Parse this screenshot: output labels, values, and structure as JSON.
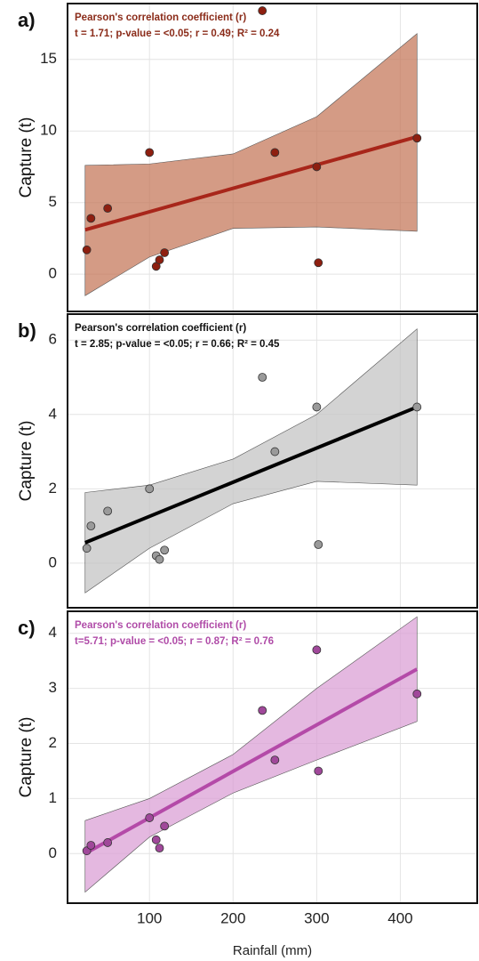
{
  "chart_data": [
    {
      "type": "scatter",
      "panel_label": "a)",
      "annotation": [
        "Pearson's correlation coefficient (r)",
        "t = 1.71; p-value = <0.05; r = 0.49; R² = 0.24"
      ],
      "ylabel": "Capture (t)",
      "x": [
        25,
        30,
        50,
        100,
        108,
        112,
        118,
        235,
        250,
        300,
        302,
        420
      ],
      "values": [
        1.7,
        3.9,
        4.6,
        8.5,
        0.55,
        1.0,
        1.5,
        18.4,
        8.5,
        7.5,
        0.8,
        9.5
      ],
      "color": "#8e1f10",
      "line_color": "#a8261a",
      "band_color": "#c67a5c",
      "text_color": "#8b2c1a",
      "fit": {
        "x": [
          23,
          420
        ],
        "y": [
          3.1,
          9.6
        ]
      },
      "band": {
        "x": [
          23,
          100,
          200,
          300,
          420
        ],
        "upper": [
          7.6,
          7.7,
          8.4,
          11,
          16.8
        ],
        "lower": [
          -1.5,
          1.2,
          3.2,
          3.3,
          3.0
        ]
      },
      "xlim": [
        2,
        492
      ],
      "xticks": [
        100,
        200,
        300,
        400
      ],
      "ylim": [
        -2.6,
        18.9
      ],
      "yticks": [
        0,
        5,
        10,
        15
      ],
      "grid": true
    },
    {
      "type": "scatter",
      "panel_label": "b)",
      "annotation": [
        "Pearson's correlation coefficient (r)",
        "t = 2.85; p-value = <0.05; r = 0.66; R² = 0.45"
      ],
      "ylabel": "Capture (t)",
      "x": [
        25,
        30,
        50,
        100,
        108,
        112,
        118,
        235,
        250,
        300,
        302,
        420
      ],
      "values": [
        0.4,
        1.0,
        1.4,
        2.0,
        0.2,
        0.1,
        0.35,
        5.0,
        3.0,
        4.2,
        0.5,
        4.2
      ],
      "color": "#9a9a9a",
      "line_color": "#000000",
      "band_color": "#c4c4c4",
      "text_color": "#111111",
      "fit": {
        "x": [
          23,
          420
        ],
        "y": [
          0.55,
          4.2
        ]
      },
      "band": {
        "x": [
          23,
          100,
          200,
          300,
          420
        ],
        "upper": [
          1.9,
          2.1,
          2.8,
          4.0,
          6.3
        ],
        "lower": [
          -0.8,
          0.4,
          1.6,
          2.2,
          2.1
        ]
      },
      "xlim": [
        2,
        492
      ],
      "xticks": [
        100,
        200,
        300,
        400
      ],
      "ylim": [
        -1.2,
        6.7
      ],
      "yticks": [
        0,
        2,
        4,
        6
      ],
      "grid": true
    },
    {
      "type": "scatter",
      "panel_label": "c)",
      "annotation": [
        "Pearson's correlation coefficient (r)",
        "t=5.71; p-value = <0.05; r = 0.87; R² = 0.76"
      ],
      "ylabel": "Capture (t)",
      "xlabel": "Rainfall (mm)",
      "x": [
        25,
        30,
        50,
        100,
        108,
        112,
        118,
        235,
        250,
        300,
        302,
        420
      ],
      "values": [
        0.05,
        0.15,
        0.2,
        0.65,
        0.25,
        0.1,
        0.5,
        2.6,
        1.7,
        3.7,
        1.5,
        2.9
      ],
      "color": "#a0489a",
      "line_color": "#b44aa8",
      "band_color": "#dba0d6",
      "text_color": "#b04ca8",
      "fit": {
        "x": [
          23,
          420
        ],
        "y": [
          0.0,
          3.35
        ]
      },
      "band": {
        "x": [
          23,
          100,
          200,
          300,
          420
        ],
        "upper": [
          0.6,
          1.0,
          1.8,
          3.0,
          4.3
        ],
        "lower": [
          -0.7,
          0.3,
          1.1,
          1.7,
          2.4
        ]
      },
      "xlim": [
        2,
        492
      ],
      "xticks": [
        100,
        200,
        300,
        400
      ],
      "ylim": [
        -0.9,
        4.4
      ],
      "yticks": [
        0,
        1,
        2,
        3,
        4
      ],
      "grid": true
    }
  ]
}
